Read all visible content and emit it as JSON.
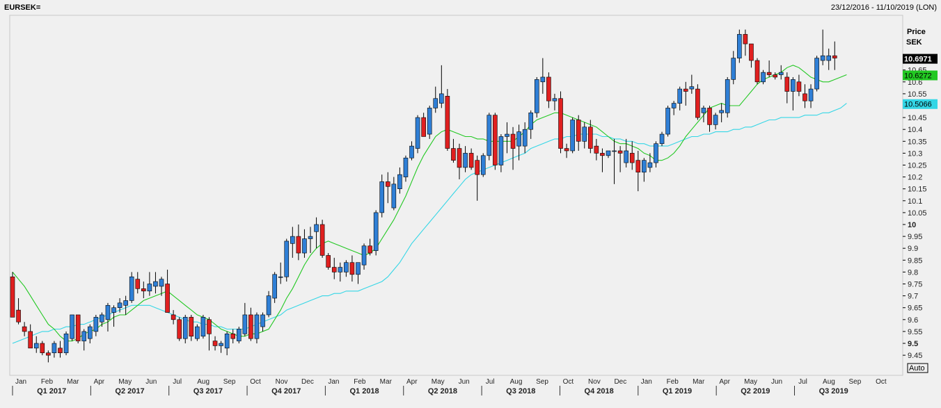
{
  "header": {
    "symbol": "EURSEK=",
    "date_range": "23/12/2016 - 11/10/2019 (LON)"
  },
  "axis": {
    "price_label_1": "Price",
    "price_label_2": "SEK",
    "auto_button": "Auto"
  },
  "colors": {
    "up": "#2f7fd6",
    "down": "#e02020",
    "ma_short": "#22c822",
    "ma_long": "#33d6e6",
    "last_price_bg": "#000000",
    "background": "#f0f0f0"
  },
  "chart_data": {
    "type": "candlestick",
    "ylim": [
      9.4,
      10.9
    ],
    "y_ticks": [
      "9.45",
      "9.5",
      "9.55",
      "9.6",
      "9.65",
      "9.7",
      "9.75",
      "9.8",
      "9.85",
      "9.9",
      "9.95",
      "10",
      "10.05",
      "10.1",
      "10.15",
      "10.2",
      "10.25",
      "10.3",
      "10.35",
      "10.4",
      "10.45",
      "10.5",
      "10.55",
      "10.6",
      "10.65"
    ],
    "bold_ticks": [
      "9.5",
      "10"
    ],
    "month_labels": [
      "Jan",
      "Feb",
      "Mar",
      "Apr",
      "May",
      "Jun",
      "Jul",
      "Aug",
      "Sep",
      "Oct",
      "Nov",
      "Dec",
      "Jan",
      "Feb",
      "Mar",
      "Apr",
      "May",
      "Jun",
      "Jul",
      "Aug",
      "Sep",
      "Oct",
      "Nov",
      "Dec",
      "Jan",
      "Feb",
      "Mar",
      "Apr",
      "May",
      "Jun",
      "Jul",
      "Aug",
      "Sep",
      "Oct"
    ],
    "quarter_labels": [
      "Q1 2017",
      "Q2 2017",
      "Q3 2017",
      "Q4 2017",
      "Q1 2018",
      "Q2 2018",
      "Q3 2018",
      "Q4 2018",
      "Q1 2019",
      "Q2 2019",
      "Q3 2019"
    ],
    "last_values": {
      "price": "10.6971",
      "ma_short": "10.6272",
      "ma_long": "10.5066"
    },
    "candles": [
      {
        "o": 9.78,
        "h": 9.8,
        "l": 9.61,
        "c": 9.61
      },
      {
        "o": 9.64,
        "h": 9.69,
        "l": 9.58,
        "c": 9.59
      },
      {
        "o": 9.57,
        "h": 9.59,
        "l": 9.53,
        "c": 9.55
      },
      {
        "o": 9.55,
        "h": 9.58,
        "l": 9.48,
        "c": 9.48
      },
      {
        "o": 9.48,
        "h": 9.53,
        "l": 9.46,
        "c": 9.5
      },
      {
        "o": 9.5,
        "h": 9.51,
        "l": 9.45,
        "c": 9.46
      },
      {
        "o": 9.46,
        "h": 9.47,
        "l": 9.42,
        "c": 9.45
      },
      {
        "o": 9.46,
        "h": 9.51,
        "l": 9.44,
        "c": 9.5
      },
      {
        "o": 9.48,
        "h": 9.51,
        "l": 9.44,
        "c": 9.46
      },
      {
        "o": 9.46,
        "h": 9.55,
        "l": 9.45,
        "c": 9.54
      },
      {
        "o": 9.52,
        "h": 9.62,
        "l": 9.51,
        "c": 9.62
      },
      {
        "o": 9.62,
        "h": 9.62,
        "l": 9.5,
        "c": 9.51
      },
      {
        "o": 9.51,
        "h": 9.56,
        "l": 9.47,
        "c": 9.55
      },
      {
        "o": 9.52,
        "h": 9.58,
        "l": 9.5,
        "c": 9.57
      },
      {
        "o": 9.55,
        "h": 9.62,
        "l": 9.53,
        "c": 9.61
      },
      {
        "o": 9.59,
        "h": 9.63,
        "l": 9.57,
        "c": 9.62
      },
      {
        "o": 9.6,
        "h": 9.67,
        "l": 9.55,
        "c": 9.66
      },
      {
        "o": 9.63,
        "h": 9.66,
        "l": 9.57,
        "c": 9.65
      },
      {
        "o": 9.65,
        "h": 9.69,
        "l": 9.63,
        "c": 9.67
      },
      {
        "o": 9.66,
        "h": 9.7,
        "l": 9.62,
        "c": 9.68
      },
      {
        "o": 9.68,
        "h": 9.8,
        "l": 9.67,
        "c": 9.78
      },
      {
        "o": 9.77,
        "h": 9.8,
        "l": 9.71,
        "c": 9.73
      },
      {
        "o": 9.73,
        "h": 9.76,
        "l": 9.69,
        "c": 9.72
      },
      {
        "o": 9.72,
        "h": 9.8,
        "l": 9.7,
        "c": 9.75
      },
      {
        "o": 9.74,
        "h": 9.8,
        "l": 9.71,
        "c": 9.76
      },
      {
        "o": 9.74,
        "h": 9.78,
        "l": 9.7,
        "c": 9.77
      },
      {
        "o": 9.75,
        "h": 9.81,
        "l": 9.63,
        "c": 9.63
      },
      {
        "o": 9.62,
        "h": 9.64,
        "l": 9.58,
        "c": 9.6
      },
      {
        "o": 9.6,
        "h": 9.61,
        "l": 9.51,
        "c": 9.52
      },
      {
        "o": 9.52,
        "h": 9.62,
        "l": 9.5,
        "c": 9.61
      },
      {
        "o": 9.61,
        "h": 9.62,
        "l": 9.51,
        "c": 9.53
      },
      {
        "o": 9.52,
        "h": 9.58,
        "l": 9.51,
        "c": 9.57
      },
      {
        "o": 9.53,
        "h": 9.62,
        "l": 9.52,
        "c": 9.61
      },
      {
        "o": 9.6,
        "h": 9.61,
        "l": 9.47,
        "c": 9.54
      },
      {
        "o": 9.51,
        "h": 9.53,
        "l": 9.47,
        "c": 9.49
      },
      {
        "o": 9.49,
        "h": 9.51,
        "l": 9.46,
        "c": 9.5
      },
      {
        "o": 9.48,
        "h": 9.55,
        "l": 9.45,
        "c": 9.54
      },
      {
        "o": 9.54,
        "h": 9.56,
        "l": 9.5,
        "c": 9.52
      },
      {
        "o": 9.51,
        "h": 9.57,
        "l": 9.5,
        "c": 9.56
      },
      {
        "o": 9.54,
        "h": 9.67,
        "l": 9.53,
        "c": 9.62
      },
      {
        "o": 9.62,
        "h": 9.65,
        "l": 9.51,
        "c": 9.52
      },
      {
        "o": 9.52,
        "h": 9.63,
        "l": 9.5,
        "c": 9.62
      },
      {
        "o": 9.57,
        "h": 9.63,
        "l": 9.55,
        "c": 9.62
      },
      {
        "o": 9.62,
        "h": 9.72,
        "l": 9.61,
        "c": 9.7
      },
      {
        "o": 9.69,
        "h": 9.8,
        "l": 9.67,
        "c": 9.79
      },
      {
        "o": 9.78,
        "h": 9.84,
        "l": 9.75,
        "c": 9.78
      },
      {
        "o": 9.78,
        "h": 9.94,
        "l": 9.76,
        "c": 9.93
      },
      {
        "o": 9.92,
        "h": 9.99,
        "l": 9.86,
        "c": 9.95
      },
      {
        "o": 9.95,
        "h": 10.0,
        "l": 9.85,
        "c": 9.88
      },
      {
        "o": 9.88,
        "h": 9.98,
        "l": 9.86,
        "c": 9.94
      },
      {
        "o": 9.94,
        "h": 9.99,
        "l": 9.88,
        "c": 9.95
      },
      {
        "o": 9.97,
        "h": 10.03,
        "l": 9.9,
        "c": 10.0
      },
      {
        "o": 10.0,
        "h": 10.02,
        "l": 9.86,
        "c": 9.87
      },
      {
        "o": 9.87,
        "h": 9.88,
        "l": 9.81,
        "c": 9.82
      },
      {
        "o": 9.82,
        "h": 9.86,
        "l": 9.77,
        "c": 9.8
      },
      {
        "o": 9.8,
        "h": 9.84,
        "l": 9.76,
        "c": 9.82
      },
      {
        "o": 9.8,
        "h": 9.85,
        "l": 9.78,
        "c": 9.84
      },
      {
        "o": 9.84,
        "h": 9.87,
        "l": 9.76,
        "c": 9.79
      },
      {
        "o": 9.79,
        "h": 9.84,
        "l": 9.75,
        "c": 9.84
      },
      {
        "o": 9.83,
        "h": 9.92,
        "l": 9.81,
        "c": 9.91
      },
      {
        "o": 9.91,
        "h": 9.94,
        "l": 9.87,
        "c": 9.88
      },
      {
        "o": 9.89,
        "h": 10.06,
        "l": 9.87,
        "c": 10.05
      },
      {
        "o": 10.05,
        "h": 10.21,
        "l": 10.03,
        "c": 10.18
      },
      {
        "o": 10.18,
        "h": 10.22,
        "l": 10.09,
        "c": 10.16
      },
      {
        "o": 10.07,
        "h": 10.2,
        "l": 10.06,
        "c": 10.17
      },
      {
        "o": 10.15,
        "h": 10.24,
        "l": 10.13,
        "c": 10.21
      },
      {
        "o": 10.2,
        "h": 10.29,
        "l": 10.18,
        "c": 10.28
      },
      {
        "o": 10.28,
        "h": 10.35,
        "l": 10.27,
        "c": 10.33
      },
      {
        "o": 10.32,
        "h": 10.46,
        "l": 10.3,
        "c": 10.45
      },
      {
        "o": 10.45,
        "h": 10.47,
        "l": 10.37,
        "c": 10.37
      },
      {
        "o": 10.38,
        "h": 10.5,
        "l": 10.36,
        "c": 10.49
      },
      {
        "o": 10.49,
        "h": 10.58,
        "l": 10.47,
        "c": 10.53
      },
      {
        "o": 10.51,
        "h": 10.67,
        "l": 10.49,
        "c": 10.55
      },
      {
        "o": 10.54,
        "h": 10.57,
        "l": 10.31,
        "c": 10.32
      },
      {
        "o": 10.32,
        "h": 10.36,
        "l": 10.26,
        "c": 10.27
      },
      {
        "o": 10.32,
        "h": 10.34,
        "l": 10.19,
        "c": 10.24
      },
      {
        "o": 10.24,
        "h": 10.33,
        "l": 10.22,
        "c": 10.3
      },
      {
        "o": 10.3,
        "h": 10.32,
        "l": 10.23,
        "c": 10.24
      },
      {
        "o": 10.27,
        "h": 10.29,
        "l": 10.1,
        "c": 10.21
      },
      {
        "o": 10.21,
        "h": 10.3,
        "l": 10.2,
        "c": 10.29
      },
      {
        "o": 10.29,
        "h": 10.47,
        "l": 10.27,
        "c": 10.46
      },
      {
        "o": 10.46,
        "h": 10.47,
        "l": 10.23,
        "c": 10.25
      },
      {
        "o": 10.25,
        "h": 10.38,
        "l": 10.22,
        "c": 10.37
      },
      {
        "o": 10.37,
        "h": 10.43,
        "l": 10.3,
        "c": 10.38
      },
      {
        "o": 10.38,
        "h": 10.41,
        "l": 10.23,
        "c": 10.32
      },
      {
        "o": 10.33,
        "h": 10.42,
        "l": 10.27,
        "c": 10.39
      },
      {
        "o": 10.33,
        "h": 10.43,
        "l": 10.3,
        "c": 10.4
      },
      {
        "o": 10.4,
        "h": 10.48,
        "l": 10.36,
        "c": 10.47
      },
      {
        "o": 10.47,
        "h": 10.62,
        "l": 10.45,
        "c": 10.61
      },
      {
        "o": 10.6,
        "h": 10.7,
        "l": 10.55,
        "c": 10.62
      },
      {
        "o": 10.62,
        "h": 10.64,
        "l": 10.49,
        "c": 10.52
      },
      {
        "o": 10.52,
        "h": 10.55,
        "l": 10.48,
        "c": 10.53
      },
      {
        "o": 10.53,
        "h": 10.56,
        "l": 10.3,
        "c": 10.32
      },
      {
        "o": 10.32,
        "h": 10.34,
        "l": 10.28,
        "c": 10.31
      },
      {
        "o": 10.31,
        "h": 10.45,
        "l": 10.3,
        "c": 10.44
      },
      {
        "o": 10.44,
        "h": 10.46,
        "l": 10.31,
        "c": 10.35
      },
      {
        "o": 10.35,
        "h": 10.43,
        "l": 10.32,
        "c": 10.41
      },
      {
        "o": 10.41,
        "h": 10.44,
        "l": 10.3,
        "c": 10.32
      },
      {
        "o": 10.33,
        "h": 10.36,
        "l": 10.27,
        "c": 10.3
      },
      {
        "o": 10.3,
        "h": 10.32,
        "l": 10.22,
        "c": 10.29
      },
      {
        "o": 10.29,
        "h": 10.31,
        "l": 10.28,
        "c": 10.31
      },
      {
        "o": 10.31,
        "h": 10.36,
        "l": 10.17,
        "c": 10.31
      },
      {
        "o": 10.31,
        "h": 10.33,
        "l": 10.22,
        "c": 10.3
      },
      {
        "o": 10.26,
        "h": 10.36,
        "l": 10.24,
        "c": 10.31
      },
      {
        "o": 10.3,
        "h": 10.35,
        "l": 10.23,
        "c": 10.26
      },
      {
        "o": 10.27,
        "h": 10.31,
        "l": 10.14,
        "c": 10.22
      },
      {
        "o": 10.22,
        "h": 10.28,
        "l": 10.18,
        "c": 10.27
      },
      {
        "o": 10.24,
        "h": 10.3,
        "l": 10.22,
        "c": 10.26
      },
      {
        "o": 10.26,
        "h": 10.35,
        "l": 10.24,
        "c": 10.34
      },
      {
        "o": 10.34,
        "h": 10.39,
        "l": 10.33,
        "c": 10.38
      },
      {
        "o": 10.38,
        "h": 10.5,
        "l": 10.37,
        "c": 10.49
      },
      {
        "o": 10.49,
        "h": 10.52,
        "l": 10.46,
        "c": 10.51
      },
      {
        "o": 10.51,
        "h": 10.58,
        "l": 10.48,
        "c": 10.57
      },
      {
        "o": 10.57,
        "h": 10.6,
        "l": 10.5,
        "c": 10.56
      },
      {
        "o": 10.57,
        "h": 10.63,
        "l": 10.55,
        "c": 10.58
      },
      {
        "o": 10.57,
        "h": 10.59,
        "l": 10.44,
        "c": 10.45
      },
      {
        "o": 10.47,
        "h": 10.5,
        "l": 10.43,
        "c": 10.49
      },
      {
        "o": 10.49,
        "h": 10.5,
        "l": 10.39,
        "c": 10.42
      },
      {
        "o": 10.42,
        "h": 10.47,
        "l": 10.4,
        "c": 10.46
      },
      {
        "o": 10.47,
        "h": 10.51,
        "l": 10.43,
        "c": 10.48
      },
      {
        "o": 10.47,
        "h": 10.62,
        "l": 10.45,
        "c": 10.61
      },
      {
        "o": 10.61,
        "h": 10.73,
        "l": 10.59,
        "c": 10.7
      },
      {
        "o": 10.7,
        "h": 10.82,
        "l": 10.68,
        "c": 10.8
      },
      {
        "o": 10.8,
        "h": 10.82,
        "l": 10.71,
        "c": 10.76
      },
      {
        "o": 10.76,
        "h": 10.76,
        "l": 10.66,
        "c": 10.69
      },
      {
        "o": 10.69,
        "h": 10.7,
        "l": 10.59,
        "c": 10.6
      },
      {
        "o": 10.6,
        "h": 10.65,
        "l": 10.59,
        "c": 10.64
      },
      {
        "o": 10.64,
        "h": 10.69,
        "l": 10.62,
        "c": 10.63
      },
      {
        "o": 10.63,
        "h": 10.64,
        "l": 10.61,
        "c": 10.62
      },
      {
        "o": 10.63,
        "h": 10.67,
        "l": 10.61,
        "c": 10.64
      },
      {
        "o": 10.62,
        "h": 10.64,
        "l": 10.51,
        "c": 10.56
      },
      {
        "o": 10.56,
        "h": 10.62,
        "l": 10.48,
        "c": 10.61
      },
      {
        "o": 10.6,
        "h": 10.63,
        "l": 10.54,
        "c": 10.56
      },
      {
        "o": 10.55,
        "h": 10.59,
        "l": 10.49,
        "c": 10.52
      },
      {
        "o": 10.52,
        "h": 10.59,
        "l": 10.49,
        "c": 10.57
      },
      {
        "o": 10.57,
        "h": 10.71,
        "l": 10.56,
        "c": 10.7
      },
      {
        "o": 10.69,
        "h": 10.82,
        "l": 10.67,
        "c": 10.71
      },
      {
        "o": 10.69,
        "h": 10.74,
        "l": 10.65,
        "c": 10.71
      },
      {
        "o": 10.71,
        "h": 10.77,
        "l": 10.65,
        "c": 10.7
      }
    ],
    "ma_short": [
      9.8,
      9.77,
      9.74,
      9.7,
      9.66,
      9.62,
      9.58,
      9.56,
      9.53,
      9.51,
      9.51,
      9.52,
      9.54,
      9.55,
      9.56,
      9.58,
      9.59,
      9.61,
      9.62,
      9.62,
      9.64,
      9.66,
      9.68,
      9.69,
      9.7,
      9.71,
      9.72,
      9.7,
      9.68,
      9.66,
      9.64,
      9.62,
      9.61,
      9.6,
      9.58,
      9.56,
      9.55,
      9.54,
      9.53,
      9.53,
      9.54,
      9.54,
      9.55,
      9.56,
      9.6,
      9.64,
      9.69,
      9.73,
      9.78,
      9.83,
      9.87,
      9.9,
      9.92,
      9.93,
      9.92,
      9.91,
      9.9,
      9.89,
      9.88,
      9.87,
      9.88,
      9.9,
      9.94,
      9.98,
      10.02,
      10.07,
      10.12,
      10.18,
      10.24,
      10.29,
      10.33,
      10.37,
      10.39,
      10.4,
      10.39,
      10.38,
      10.37,
      10.37,
      10.36,
      10.36,
      10.35,
      10.35,
      10.35,
      10.35,
      10.35,
      10.37,
      10.39,
      10.42,
      10.44,
      10.45,
      10.46,
      10.47,
      10.47,
      10.46,
      10.45,
      10.44,
      10.43,
      10.42,
      10.41,
      10.39,
      10.37,
      10.35,
      10.34,
      10.34,
      10.33,
      10.32,
      10.3,
      10.29,
      10.27,
      10.27,
      10.28,
      10.3,
      10.33,
      10.37,
      10.4,
      10.43,
      10.46,
      10.49,
      10.5,
      10.51,
      10.5,
      10.5,
      10.5,
      10.53,
      10.56,
      10.59,
      10.61,
      10.62,
      10.63,
      10.64,
      10.66,
      10.67,
      10.66,
      10.64,
      10.62,
      10.61,
      10.6,
      10.6,
      10.61,
      10.62,
      10.63
    ],
    "ma_long": [
      9.5,
      9.51,
      9.52,
      9.53,
      9.54,
      9.55,
      9.55,
      9.56,
      9.56,
      9.57,
      9.57,
      9.58,
      9.58,
      9.59,
      9.6,
      9.61,
      9.62,
      9.63,
      9.64,
      9.65,
      9.66,
      9.66,
      9.66,
      9.66,
      9.65,
      9.64,
      9.63,
      9.62,
      9.61,
      9.6,
      9.59,
      9.59,
      9.58,
      9.58,
      9.57,
      9.57,
      9.56,
      9.56,
      9.56,
      9.56,
      9.57,
      9.58,
      9.59,
      9.6,
      9.61,
      9.62,
      9.64,
      9.65,
      9.66,
      9.67,
      9.68,
      9.69,
      9.7,
      9.7,
      9.71,
      9.71,
      9.72,
      9.72,
      9.72,
      9.73,
      9.74,
      9.75,
      9.76,
      9.78,
      9.81,
      9.84,
      9.88,
      9.92,
      9.95,
      9.98,
      10.01,
      10.04,
      10.07,
      10.1,
      10.13,
      10.16,
      10.19,
      10.21,
      10.22,
      10.23,
      10.24,
      10.25,
      10.26,
      10.27,
      10.28,
      10.29,
      10.3,
      10.32,
      10.33,
      10.34,
      10.35,
      10.36,
      10.36,
      10.37,
      10.37,
      10.38,
      10.38,
      10.38,
      10.38,
      10.37,
      10.37,
      10.36,
      10.36,
      10.35,
      10.35,
      10.34,
      10.34,
      10.33,
      10.33,
      10.33,
      10.33,
      10.34,
      10.35,
      10.36,
      10.37,
      10.37,
      10.38,
      10.38,
      10.39,
      10.39,
      10.39,
      10.4,
      10.4,
      10.41,
      10.41,
      10.42,
      10.43,
      10.44,
      10.44,
      10.45,
      10.45,
      10.45,
      10.45,
      10.46,
      10.46,
      10.46,
      10.47,
      10.47,
      10.48,
      10.49,
      10.51
    ]
  }
}
